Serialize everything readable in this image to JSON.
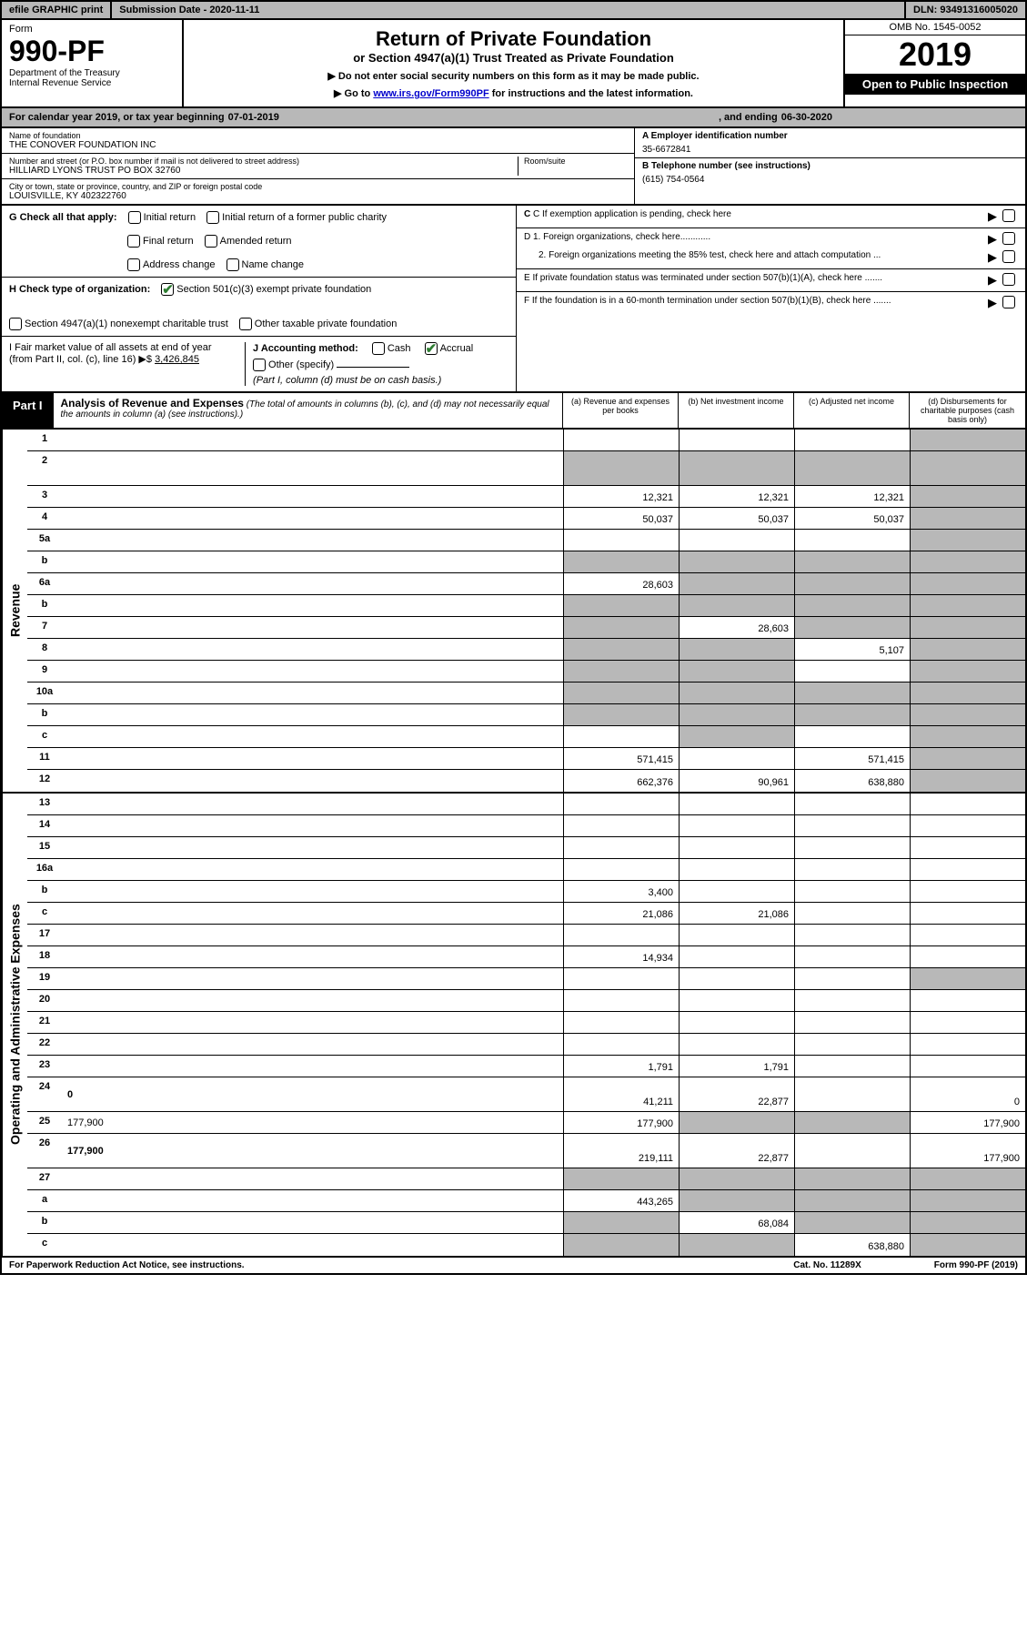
{
  "topbar": {
    "efile": "efile GRAPHIC print",
    "subdate_label": "Submission Date - 2020-11-11",
    "dln": "DLN: 93491316005020"
  },
  "header": {
    "form_word": "Form",
    "form_no": "990-PF",
    "dept": "Department of the Treasury",
    "irs": "Internal Revenue Service",
    "title": "Return of Private Foundation",
    "subtitle": "or Section 4947(a)(1) Trust Treated as Private Foundation",
    "note1": "▶ Do not enter social security numbers on this form as it may be made public.",
    "note2_pre": "▶ Go to ",
    "note2_link": "www.irs.gov/Form990PF",
    "note2_post": " for instructions and the latest information.",
    "omb": "OMB No. 1545-0052",
    "year": "2019",
    "open": "Open to Public Inspection"
  },
  "calendar": {
    "pre": "For calendar year 2019, or tax year beginning ",
    "begin": "07-01-2019",
    "mid": ", and ending ",
    "end": "06-30-2020"
  },
  "info": {
    "name_lbl": "Name of foundation",
    "name": "THE CONOVER FOUNDATION INC",
    "addr_lbl": "Number and street (or P.O. box number if mail is not delivered to street address)",
    "addr": "HILLIARD LYONS TRUST PO BOX 32760",
    "room_lbl": "Room/suite",
    "city_lbl": "City or town, state or province, country, and ZIP or foreign postal code",
    "city": "LOUISVILLE, KY  402322760",
    "ein_lbl": "A Employer identification number",
    "ein": "35-6672841",
    "tel_lbl": "B Telephone number (see instructions)",
    "tel": "(615) 754-0564",
    "c_lbl": "C If exemption application is pending, check here",
    "d1": "D 1. Foreign organizations, check here............",
    "d2": "2. Foreign organizations meeting the 85% test, check here and attach computation ...",
    "e": "E  If private foundation status was terminated under section 507(b)(1)(A), check here .......",
    "f": "F  If the foundation is in a 60-month termination under section 507(b)(1)(B), check here ......."
  },
  "g": {
    "label": "G Check all that apply:",
    "opts": [
      "Initial return",
      "Initial return of a former public charity",
      "Final return",
      "Amended return",
      "Address change",
      "Name change"
    ]
  },
  "h": {
    "label": "H Check type of organization:",
    "opt1": "Section 501(c)(3) exempt private foundation",
    "opt2": "Section 4947(a)(1) nonexempt charitable trust",
    "opt3": "Other taxable private foundation"
  },
  "i": {
    "label": "I Fair market value of all assets at end of year (from Part II, col. (c), line 16) ▶$ ",
    "value": "3,426,845"
  },
  "j": {
    "label": "J Accounting method:",
    "cash": "Cash",
    "accrual": "Accrual",
    "other": "Other (specify)",
    "note": "(Part I, column (d) must be on cash basis.)"
  },
  "part1": {
    "badge": "Part I",
    "title": "Analysis of Revenue and Expenses",
    "note": "(The total of amounts in columns (b), (c), and (d) may not necessarily equal the amounts in column (a) (see instructions).)",
    "cols": {
      "a": "(a) Revenue and expenses per books",
      "b": "(b) Net investment income",
      "c": "(c) Adjusted net income",
      "d": "(d) Disbursements for charitable purposes (cash basis only)"
    }
  },
  "sections": {
    "revenue": "Revenue",
    "expenses": "Operating and Administrative Expenses"
  },
  "rows": [
    {
      "n": "1",
      "d": "",
      "a": "",
      "b": "",
      "c": "",
      "shade": [
        "d"
      ]
    },
    {
      "n": "2",
      "d": "",
      "a": "",
      "b": "",
      "c": "",
      "shade": [
        "a",
        "b",
        "c",
        "d"
      ],
      "bold_not": true,
      "tall": true
    },
    {
      "n": "3",
      "d": "",
      "a": "12,321",
      "b": "12,321",
      "c": "12,321",
      "shade": [
        "d"
      ]
    },
    {
      "n": "4",
      "d": "",
      "a": "50,037",
      "b": "50,037",
      "c": "50,037",
      "shade": [
        "d"
      ]
    },
    {
      "n": "5a",
      "d": "",
      "a": "",
      "b": "",
      "c": "",
      "shade": [
        "d"
      ]
    },
    {
      "n": "b",
      "d": "",
      "a": "",
      "b": "",
      "c": "",
      "shade": [
        "a",
        "b",
        "c",
        "d"
      ]
    },
    {
      "n": "6a",
      "d": "",
      "a": "28,603",
      "b": "",
      "c": "",
      "shade": [
        "b",
        "c",
        "d"
      ]
    },
    {
      "n": "b",
      "d": "",
      "a": "",
      "b": "",
      "c": "",
      "shade": [
        "a",
        "b",
        "c",
        "d"
      ]
    },
    {
      "n": "7",
      "d": "",
      "a": "",
      "b": "28,603",
      "c": "",
      "shade": [
        "a",
        "c",
        "d"
      ]
    },
    {
      "n": "8",
      "d": "",
      "a": "",
      "b": "",
      "c": "5,107",
      "shade": [
        "a",
        "b",
        "d"
      ]
    },
    {
      "n": "9",
      "d": "",
      "a": "",
      "b": "",
      "c": "",
      "shade": [
        "a",
        "b",
        "d"
      ]
    },
    {
      "n": "10a",
      "d": "",
      "a": "",
      "b": "",
      "c": "",
      "shade": [
        "a",
        "b",
        "c",
        "d"
      ]
    },
    {
      "n": "b",
      "d": "",
      "a": "",
      "b": "",
      "c": "",
      "shade": [
        "a",
        "b",
        "c",
        "d"
      ]
    },
    {
      "n": "c",
      "d": "",
      "a": "",
      "b": "",
      "c": "",
      "shade": [
        "b",
        "d"
      ]
    },
    {
      "n": "11",
      "d": "",
      "a": "571,415",
      "b": "",
      "c": "571,415",
      "shade": [
        "d"
      ]
    },
    {
      "n": "12",
      "d": "",
      "a": "662,376",
      "b": "90,961",
      "c": "638,880",
      "shade": [
        "d"
      ],
      "bold": true
    }
  ],
  "exp_rows": [
    {
      "n": "13",
      "d": "",
      "a": "",
      "b": "",
      "c": ""
    },
    {
      "n": "14",
      "d": "",
      "a": "",
      "b": "",
      "c": ""
    },
    {
      "n": "15",
      "d": "",
      "a": "",
      "b": "",
      "c": ""
    },
    {
      "n": "16a",
      "d": "",
      "a": "",
      "b": "",
      "c": ""
    },
    {
      "n": "b",
      "d": "",
      "a": "3,400",
      "b": "",
      "c": ""
    },
    {
      "n": "c",
      "d": "",
      "a": "21,086",
      "b": "21,086",
      "c": ""
    },
    {
      "n": "17",
      "d": "",
      "a": "",
      "b": "",
      "c": ""
    },
    {
      "n": "18",
      "d": "",
      "a": "14,934",
      "b": "",
      "c": ""
    },
    {
      "n": "19",
      "d": "",
      "a": "",
      "b": "",
      "c": "",
      "shade": [
        "d"
      ]
    },
    {
      "n": "20",
      "d": "",
      "a": "",
      "b": "",
      "c": ""
    },
    {
      "n": "21",
      "d": "",
      "a": "",
      "b": "",
      "c": ""
    },
    {
      "n": "22",
      "d": "",
      "a": "",
      "b": "",
      "c": ""
    },
    {
      "n": "23",
      "d": "",
      "a": "1,791",
      "b": "1,791",
      "c": ""
    },
    {
      "n": "24",
      "d": "0",
      "a": "41,211",
      "b": "22,877",
      "c": "",
      "bold": true,
      "tall": true
    },
    {
      "n": "25",
      "d": "177,900",
      "a": "177,900",
      "b": "",
      "c": "",
      "shade": [
        "b",
        "c"
      ]
    },
    {
      "n": "26",
      "d": "177,900",
      "a": "219,111",
      "b": "22,877",
      "c": "",
      "bold": true,
      "tall": true
    },
    {
      "n": "27",
      "d": "",
      "a": "",
      "b": "",
      "c": "",
      "shade": [
        "a",
        "b",
        "c",
        "d"
      ]
    },
    {
      "n": "a",
      "d": "",
      "a": "443,265",
      "b": "",
      "c": "",
      "shade": [
        "b",
        "c",
        "d"
      ],
      "bold": true
    },
    {
      "n": "b",
      "d": "",
      "a": "",
      "b": "68,084",
      "c": "",
      "shade": [
        "a",
        "c",
        "d"
      ],
      "bold": true
    },
    {
      "n": "c",
      "d": "",
      "a": "",
      "b": "",
      "c": "638,880",
      "shade": [
        "a",
        "b",
        "d"
      ],
      "bold": true
    }
  ],
  "footer": {
    "left": "For Paperwork Reduction Act Notice, see instructions.",
    "mid": "Cat. No. 11289X",
    "right": "Form 990-PF (2019)"
  }
}
